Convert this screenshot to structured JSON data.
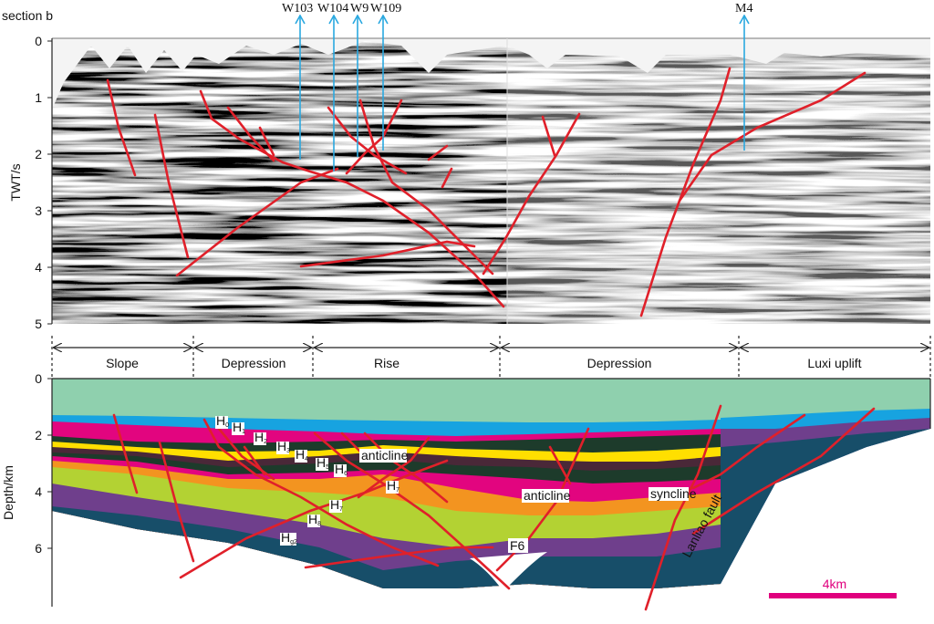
{
  "top_panel": {
    "title": "section b",
    "y_axis_label": "TWT/s",
    "y_ticks": [
      0,
      1,
      2,
      3,
      4,
      5
    ],
    "wells": [
      "W103",
      "W104",
      "W9",
      "W109",
      "M4"
    ]
  },
  "bottom_panel": {
    "zones": [
      "Slope",
      "Depression",
      "Rise",
      "Depression",
      "Luxi uplift"
    ],
    "y_axis_label": "Depth/km",
    "y_ticks": [
      0,
      2,
      4,
      6
    ],
    "horizons": [
      {
        "main": "H",
        "sub": "0"
      },
      {
        "main": "H",
        "sub": "1"
      },
      {
        "main": "H",
        "sub": "2"
      },
      {
        "main": "H",
        "sub": "3"
      },
      {
        "main": "H",
        "sub": "4"
      },
      {
        "main": "H",
        "sub": "5"
      },
      {
        "main": "H",
        "sub": "6"
      },
      {
        "main": "H",
        "sub": "7"
      },
      {
        "main": "H",
        "sub": "7"
      },
      {
        "main": "H",
        "sub": "8"
      },
      {
        "main": "H",
        "sub": "g2"
      }
    ],
    "annotations": [
      "anticline",
      "anticline",
      "syncline",
      "F6",
      "Lanliao fault"
    ],
    "scale_bar": "4km"
  }
}
